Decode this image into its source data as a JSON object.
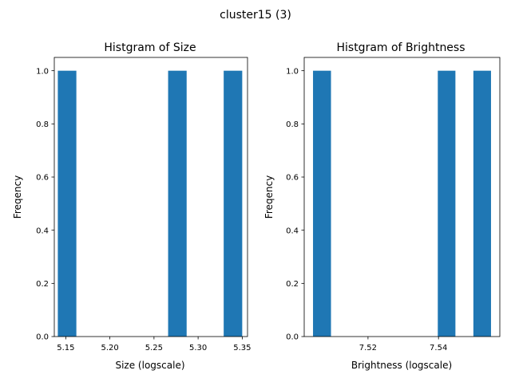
{
  "figure": {
    "suptitle": "cluster15 (3)",
    "bar_color": "#1f77b4"
  },
  "chart_data": [
    {
      "type": "bar",
      "title": "Histgram of Size",
      "xlabel": "Size (logscale)",
      "ylabel": "Freqency",
      "xlim": [
        5.137,
        5.356
      ],
      "ylim": [
        0.0,
        1.05
      ],
      "grid": false,
      "bars": [
        {
          "x0": 5.141,
          "x1": 5.162,
          "value": 1.0
        },
        {
          "x0": 5.162,
          "x1": 5.183,
          "value": 0.0
        },
        {
          "x0": 5.183,
          "x1": 5.204,
          "value": 0.0
        },
        {
          "x0": 5.204,
          "x1": 5.225,
          "value": 0.0
        },
        {
          "x0": 5.225,
          "x1": 5.246,
          "value": 0.0
        },
        {
          "x0": 5.246,
          "x1": 5.266,
          "value": 0.0
        },
        {
          "x0": 5.266,
          "x1": 5.287,
          "value": 1.0
        },
        {
          "x0": 5.287,
          "x1": 5.308,
          "value": 0.0
        },
        {
          "x0": 5.308,
          "x1": 5.329,
          "value": 0.0
        },
        {
          "x0": 5.329,
          "x1": 5.35,
          "value": 1.0
        }
      ],
      "xticks": [
        {
          "value": 5.15,
          "label": "5.15"
        },
        {
          "value": 5.2,
          "label": "5.20"
        },
        {
          "value": 5.25,
          "label": "5.25"
        },
        {
          "value": 5.3,
          "label": "5.30"
        },
        {
          "value": 5.35,
          "label": "5.35"
        }
      ],
      "yticks": [
        {
          "value": 0.0,
          "label": "0.0"
        },
        {
          "value": 0.2,
          "label": "0.2"
        },
        {
          "value": 0.4,
          "label": "0.4"
        },
        {
          "value": 0.6,
          "label": "0.6"
        },
        {
          "value": 0.8,
          "label": "0.8"
        },
        {
          "value": 1.0,
          "label": "1.0"
        }
      ]
    },
    {
      "type": "bar",
      "title": "Histgram of Brightness",
      "xlabel": "Brightness (logscale)",
      "ylabel": "Freqency",
      "xlim": [
        7.5019,
        7.5574
      ],
      "ylim": [
        0.0,
        1.05
      ],
      "grid": false,
      "bars": [
        {
          "x0": 7.5044,
          "x1": 7.5095,
          "value": 1.0
        },
        {
          "x0": 7.5095,
          "x1": 7.5145,
          "value": 0.0
        },
        {
          "x0": 7.5145,
          "x1": 7.5196,
          "value": 0.0
        },
        {
          "x0": 7.5196,
          "x1": 7.5246,
          "value": 0.0
        },
        {
          "x0": 7.5246,
          "x1": 7.5297,
          "value": 0.0
        },
        {
          "x0": 7.5297,
          "x1": 7.5347,
          "value": 0.0
        },
        {
          "x0": 7.5347,
          "x1": 7.5398,
          "value": 0.0
        },
        {
          "x0": 7.5398,
          "x1": 7.5448,
          "value": 1.0
        },
        {
          "x0": 7.5448,
          "x1": 7.5499,
          "value": 0.0
        },
        {
          "x0": 7.5499,
          "x1": 7.5549,
          "value": 1.0
        }
      ],
      "xticks": [
        {
          "value": 7.52,
          "label": "7.52"
        },
        {
          "value": 7.54,
          "label": "7.54"
        }
      ],
      "yticks": [
        {
          "value": 0.0,
          "label": "0.0"
        },
        {
          "value": 0.2,
          "label": "0.2"
        },
        {
          "value": 0.4,
          "label": "0.4"
        },
        {
          "value": 0.6,
          "label": "0.6"
        },
        {
          "value": 0.8,
          "label": "0.8"
        },
        {
          "value": 1.0,
          "label": "1.0"
        }
      ]
    }
  ]
}
